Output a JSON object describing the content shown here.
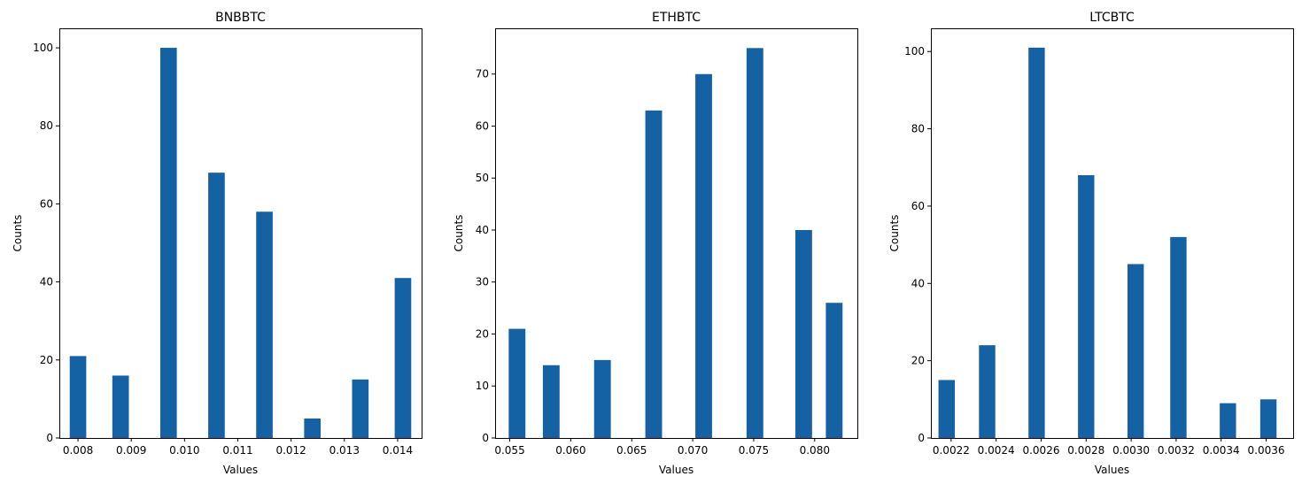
{
  "chart_data": [
    {
      "type": "bar",
      "title": "BNBBTC",
      "xlabel": "Values",
      "ylabel": "Counts",
      "xlim": [
        0.00765,
        0.01445
      ],
      "ylim": [
        0,
        105
      ],
      "xticks": [
        0.008,
        0.009,
        0.01,
        0.011,
        0.012,
        0.013,
        0.014
      ],
      "xtick_labels": [
        "0.008",
        "0.009",
        "0.010",
        "0.011",
        "0.012",
        "0.013",
        "0.014"
      ],
      "yticks": [
        0,
        20,
        40,
        60,
        80,
        100
      ],
      "ytick_labels": [
        "0",
        "20",
        "40",
        "60",
        "80",
        "100"
      ],
      "bar_width": 0.00031,
      "x": [
        0.008,
        0.0088,
        0.0097,
        0.0106,
        0.0115,
        0.0124,
        0.0133,
        0.0141
      ],
      "values": [
        21,
        16,
        100,
        68,
        58,
        5,
        15,
        41
      ],
      "color": "#1462a3",
      "grid": false,
      "legend": "none"
    },
    {
      "type": "bar",
      "title": "ETHBTC",
      "xlabel": "Values",
      "ylabel": "Counts",
      "xlim": [
        0.0538,
        0.0835
      ],
      "ylim": [
        0,
        78.8
      ],
      "xticks": [
        0.055,
        0.06,
        0.065,
        0.07,
        0.075,
        0.08
      ],
      "xtick_labels": [
        "0.055",
        "0.060",
        "0.065",
        "0.070",
        "0.075",
        "0.080"
      ],
      "yticks": [
        0,
        10,
        20,
        30,
        40,
        50,
        60,
        70
      ],
      "ytick_labels": [
        "0",
        "10",
        "20",
        "30",
        "40",
        "50",
        "60",
        "70"
      ],
      "bar_width": 0.00137,
      "x": [
        0.0556,
        0.0584,
        0.0626,
        0.0668,
        0.0709,
        0.0751,
        0.0791,
        0.0816
      ],
      "values": [
        21,
        14,
        15,
        63,
        70,
        75,
        40,
        26
      ],
      "color": "#1462a3",
      "grid": false,
      "legend": "none"
    },
    {
      "type": "bar",
      "title": "LTCBTC",
      "xlabel": "Values",
      "ylabel": "Counts",
      "xlim": [
        0.00211,
        0.00372
      ],
      "ylim": [
        0,
        106
      ],
      "xticks": [
        0.0022,
        0.0024,
        0.0026,
        0.0028,
        0.003,
        0.0032,
        0.0034,
        0.0036
      ],
      "xtick_labels": [
        "0.0022",
        "0.0024",
        "0.0026",
        "0.0028",
        "0.0030",
        "0.0032",
        "0.0034",
        "0.0036"
      ],
      "yticks": [
        0,
        20,
        40,
        60,
        80,
        100
      ],
      "ytick_labels": [
        "0",
        "20",
        "40",
        "60",
        "80",
        "100"
      ],
      "bar_width": 7.25e-05,
      "x": [
        0.00218,
        0.00236,
        0.00258,
        0.0028,
        0.00302,
        0.00321,
        0.00343,
        0.00361
      ],
      "values": [
        15,
        24,
        101,
        68,
        45,
        52,
        9,
        10
      ],
      "color": "#1462a3",
      "grid": false,
      "legend": "none"
    }
  ]
}
